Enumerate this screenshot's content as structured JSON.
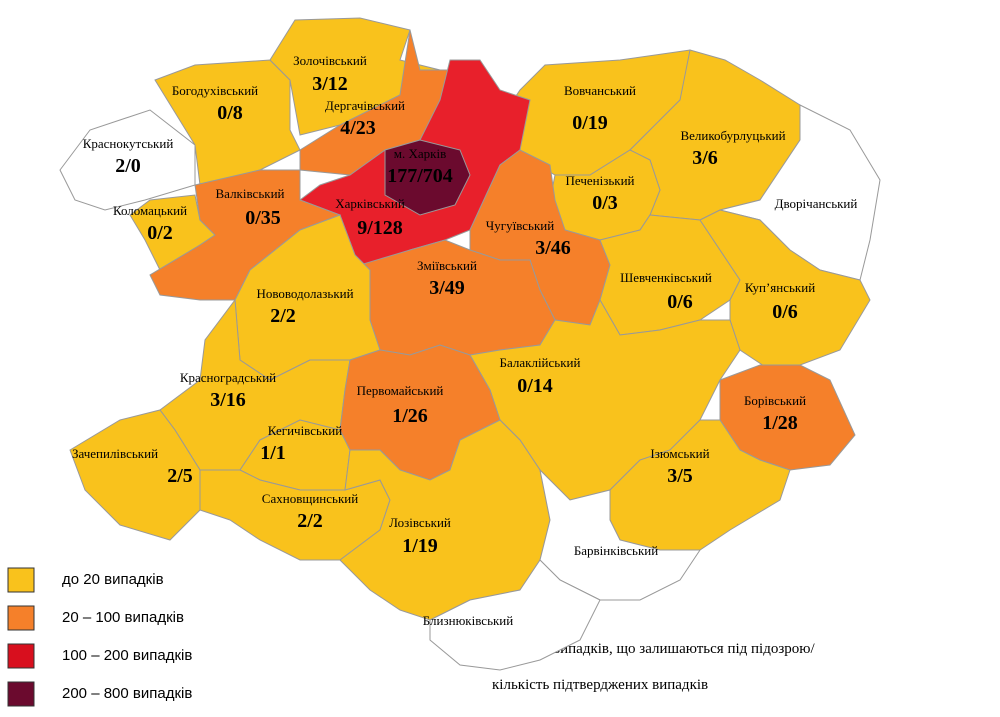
{
  "districts": [
    {
      "name": "Краснокутський",
      "value": "2/0",
      "color": "#ffffff"
    },
    {
      "name": "Богодухівський",
      "value": "0/8",
      "color": "#f9c21c"
    },
    {
      "name": "Золочівський",
      "value": "3/12",
      "color": "#f9c21c"
    },
    {
      "name": "Дергачівський",
      "value": "4/23",
      "color": "#f5802a"
    },
    {
      "name": "Вовчанський",
      "value": "0/19",
      "color": "#f9c21c"
    },
    {
      "name": "Харківський",
      "value": "9/128",
      "color": "#e8202b"
    },
    {
      "name": "Великобурлуцький",
      "value": "3/6",
      "color": "#f9c21c"
    },
    {
      "name": "Дворічанський",
      "value": null,
      "color": "#ffffff"
    },
    {
      "name": "Печенізький",
      "value": "0/3",
      "color": "#f9c21c"
    },
    {
      "name": "Коломацький",
      "value": "0/2",
      "color": "#f9c21c"
    },
    {
      "name": "Валківський",
      "value": "0/35",
      "color": "#f5802a"
    },
    {
      "name": "Чугуївський",
      "value": "3/46",
      "color": "#f5802a"
    },
    {
      "name": "Зміївський",
      "value": "3/49",
      "color": "#f5802a"
    },
    {
      "name": "Нововодолазький",
      "value": "2/2",
      "color": "#f9c21c"
    },
    {
      "name": "Шевченківський",
      "value": "0/6",
      "color": "#f9c21c"
    },
    {
      "name": "Куп’янський",
      "value": "0/6",
      "color": "#f9c21c"
    },
    {
      "name": "Балаклійський",
      "value": "0/14",
      "color": "#f9c21c"
    },
    {
      "name": "Красноградський",
      "value": "3/16",
      "color": "#f9c21c"
    },
    {
      "name": "Кегичівський",
      "value": "1/1",
      "color": "#f9c21c"
    },
    {
      "name": "Первомайський",
      "value": "1/26",
      "color": "#f5802a"
    },
    {
      "name": "Борівський",
      "value": "1/28",
      "color": "#f5802a"
    },
    {
      "name": "Ізюмський",
      "value": "3/5",
      "color": "#f9c21c"
    },
    {
      "name": "Зачепилівський",
      "value": "2/5",
      "color": "#f9c21c"
    },
    {
      "name": "Сахновщинський",
      "value": "2/2",
      "color": "#f9c21c"
    },
    {
      "name": "Лозівський",
      "value": "1/19",
      "color": "#f9c21c"
    },
    {
      "name": "Барвінківський",
      "value": null,
      "color": "#ffffff"
    },
    {
      "name": "Близнюківський",
      "value": null,
      "color": "#ffffff"
    },
    {
      "name": "м. Харків",
      "value": "177/704",
      "color": "#6b0a2e"
    }
  ],
  "legend": {
    "items": [
      {
        "label": "до 20  випадків",
        "color": "#f9c21c"
      },
      {
        "label": "20 – 100  випадків",
        "color": "#f5802a"
      },
      {
        "label": "100 – 200  випадків",
        "color": "#d80f1e"
      },
      {
        "label": "200 – 800  випадків",
        "color": "#6b0a2e"
      }
    ]
  },
  "note": {
    "line1": "кількість випадків, що залишаються під підозрою/",
    "line2": "кількість підтверджених випадків"
  }
}
